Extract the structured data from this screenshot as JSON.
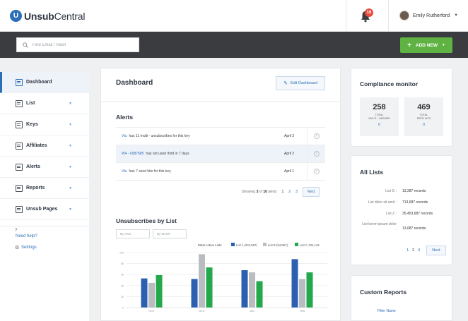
{
  "app": {
    "logo_initial": "U",
    "logo_bold": "Unsub",
    "logo_rest": "Central"
  },
  "header": {
    "notification_count": "16",
    "user_name": "Emily Rutherford"
  },
  "search": {
    "placeholder": "Find Email / Hash"
  },
  "toolbar": {
    "add_new_label": "ADD NEW"
  },
  "sidebar": {
    "items": [
      {
        "label": "Dashboard",
        "active": true
      },
      {
        "label": "List"
      },
      {
        "label": "Keys"
      },
      {
        "label": "Affiliates"
      },
      {
        "label": "Alerts"
      },
      {
        "label": "Reports"
      },
      {
        "label": "Unsub Pages"
      }
    ],
    "help_mark": "?",
    "help_label": "Need help?",
    "settings_label": "Settings"
  },
  "dashboard": {
    "title": "Dashboard",
    "edit_label": "Edit Dashboard",
    "alerts_title": "Alerts",
    "alerts": [
      {
        "key": "Vtu",
        "text": "has 11 multi - unsubscribes for this key",
        "date": "April 2"
      },
      {
        "key": "W4 - 6987685",
        "text": "has not used third in 7 days",
        "date": "April 2"
      },
      {
        "key": "Vtu",
        "text": "has 7 seed hits for this key",
        "date": "April 1"
      }
    ],
    "alerts_pager": {
      "showing": "Showing",
      "from": "3",
      "of": "of",
      "total": "10",
      "suffix": "alerts",
      "pages": [
        "1",
        "2",
        "3"
      ],
      "next": "Next"
    },
    "unsubs_title": "Unsubscribes by List",
    "filter_year": "By Year",
    "filter_month": "By Month"
  },
  "chart_data": {
    "type": "bar",
    "legend_title": "Most Active Lists",
    "legend_position": "top-right",
    "categories": [
      "NOV",
      "DEC",
      "JAN",
      "FEB"
    ],
    "series": [
      {
        "name": "List A (234,567)",
        "color": "#2c5fb0",
        "values": [
          53,
          52,
          68,
          88
        ]
      },
      {
        "name": "List B (94,567)",
        "color": "#b9bcc0",
        "values": [
          45,
          97,
          64,
          52
        ]
      },
      {
        "name": "List C 434,145",
        "color": "#23a84c",
        "values": [
          59,
          73,
          48,
          64
        ]
      }
    ],
    "ylim": [
      0,
      100
    ],
    "y_ticks": [
      "0",
      "20",
      "40",
      "60",
      "80",
      "100"
    ],
    "grid": true
  },
  "compliance": {
    "title": "Compliance monitor",
    "stats": [
      {
        "value": "258",
        "label_1": "TOTAL",
        "label_2": "MULTI - UNSUBS",
        "sub": "0",
        "color": "#e04a2f"
      },
      {
        "value": "469",
        "label_1": "TOTAL",
        "label_2": "SEED HITS",
        "sub": "0",
        "color": "#e04a2f"
      }
    ]
  },
  "all_lists": {
    "title": "All Lists",
    "rows": [
      {
        "name": "List G :",
        "value": "13,287 records"
      },
      {
        "name": "List dolor sit amit :",
        "value": "713,687 records"
      },
      {
        "name": "List Z :",
        "value": "35,453,687 records"
      },
      {
        "name": "List lorem ipsum dolor :",
        "value": "13,687 records"
      }
    ],
    "pages": [
      "1",
      "2",
      "3"
    ],
    "next": "Next"
  },
  "custom_reports": {
    "title": "Custom Reports",
    "filter_label": "Filter Name"
  }
}
